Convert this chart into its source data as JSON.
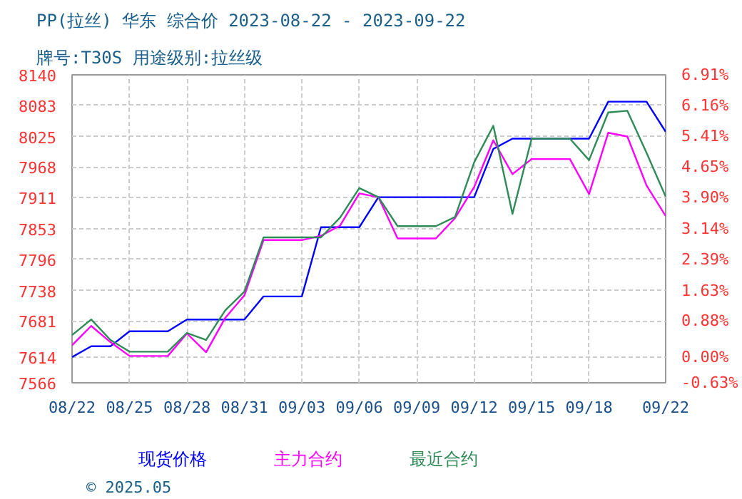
{
  "chart_data": {
    "type": "line",
    "title": "PP(拉丝) 华东 综合价 2023-08-22 - 2023-09-22",
    "subtitle": "牌号:T30S 用途级别:拉丝级",
    "annotations": [
      "© 2025.05"
    ],
    "xlim": [
      "2023-08-22",
      "2023-09-22"
    ],
    "xticks": [
      {
        "value": "2023-08-22",
        "label": "08/22"
      },
      {
        "value": "2023-08-25",
        "label": "08/25"
      },
      {
        "value": "2023-08-28",
        "label": "08/28"
      },
      {
        "value": "2023-08-31",
        "label": "08/31"
      },
      {
        "value": "2023-09-03",
        "label": "09/03"
      },
      {
        "value": "2023-09-06",
        "label": "09/06"
      },
      {
        "value": "2023-09-09",
        "label": "09/09"
      },
      {
        "value": "2023-09-12",
        "label": "09/12"
      },
      {
        "value": "2023-09-15",
        "label": "09/15"
      },
      {
        "value": "2023-09-18",
        "label": "09/18"
      },
      {
        "value": "2023-09-22",
        "label": "09/22"
      }
    ],
    "ylim": [
      7566,
      8140
    ],
    "yticks": [
      7566,
      7614,
      7681,
      7738,
      7796,
      7853,
      7911,
      7968,
      8025,
      8083,
      8140
    ],
    "y2lim": [
      -0.63,
      6.91
    ],
    "y2ticks": [
      {
        "value": -0.63,
        "label": "-0.63%"
      },
      {
        "value": 0,
        "label": "0.00%"
      },
      {
        "value": 0.88,
        "label": "0.88%"
      },
      {
        "value": 1.63,
        "label": "1.63%"
      },
      {
        "value": 2.39,
        "label": "2.39%"
      },
      {
        "value": 3.14,
        "label": "3.14%"
      },
      {
        "value": 3.9,
        "label": "3.90%"
      },
      {
        "value": 4.65,
        "label": "4.65%"
      },
      {
        "value": 5.41,
        "label": "5.41%"
      },
      {
        "value": 6.16,
        "label": "6.16%"
      },
      {
        "value": 6.91,
        "label": "6.91%"
      }
    ],
    "grid": true,
    "legend": "bottom",
    "series": [
      {
        "name": "现货价格",
        "color": "#0000ff",
        "x": [
          "2023-08-22",
          "2023-08-23",
          "2023-08-24",
          "2023-08-25",
          "2023-08-27",
          "2023-08-28",
          "2023-08-31",
          "2023-09-01",
          "2023-09-03",
          "2023-09-04",
          "2023-09-06",
          "2023-09-07",
          "2023-09-12",
          "2023-09-13",
          "2023-09-14",
          "2023-09-18",
          "2023-09-19",
          "2023-09-21",
          "2023-09-22"
        ],
        "values": [
          7614,
          7634,
          7634,
          7662,
          7662,
          7684,
          7684,
          7727,
          7727,
          7856,
          7856,
          7912,
          7912,
          8002,
          8021,
          8021,
          8090,
          8090,
          8034
        ]
      },
      {
        "name": "主力合约",
        "color": "#ff00ff",
        "x": [
          "2023-08-22",
          "2023-08-23",
          "2023-08-24",
          "2023-08-25",
          "2023-08-27",
          "2023-08-28",
          "2023-08-29",
          "2023-08-30",
          "2023-08-31",
          "2023-09-01",
          "2023-09-03",
          "2023-09-04",
          "2023-09-05",
          "2023-09-06",
          "2023-09-07",
          "2023-09-08",
          "2023-09-10",
          "2023-09-11",
          "2023-09-12",
          "2023-09-13",
          "2023-09-14",
          "2023-09-15",
          "2023-09-17",
          "2023-09-18",
          "2023-09-19",
          "2023-09-20",
          "2023-09-21",
          "2023-09-22"
        ],
        "values": [
          7636,
          7672,
          7642,
          7616,
          7616,
          7658,
          7623,
          7687,
          7729,
          7832,
          7832,
          7840,
          7859,
          7919,
          7912,
          7835,
          7835,
          7873,
          7931,
          8018,
          7955,
          7983,
          7983,
          7918,
          8032,
          8025,
          7934,
          7877
        ]
      },
      {
        "name": "最近合约",
        "color": "#2e8b57",
        "x": [
          "2023-08-22",
          "2023-08-23",
          "2023-08-24",
          "2023-08-25",
          "2023-08-27",
          "2023-08-28",
          "2023-08-29",
          "2023-08-30",
          "2023-08-31",
          "2023-09-01",
          "2023-09-04",
          "2023-09-05",
          "2023-09-06",
          "2023-09-07",
          "2023-09-08",
          "2023-09-10",
          "2023-09-11",
          "2023-09-12",
          "2023-09-13",
          "2023-09-14",
          "2023-09-15",
          "2023-09-17",
          "2023-09-18",
          "2023-09-19",
          "2023-09-20",
          "2023-09-21",
          "2023-09-22"
        ],
        "values": [
          7655,
          7684,
          7646,
          7624,
          7624,
          7659,
          7646,
          7701,
          7736,
          7837,
          7837,
          7874,
          7929,
          7912,
          7858,
          7858,
          7875,
          7977,
          8045,
          7881,
          8021,
          8021,
          7981,
          8070,
          8073,
          7995,
          7913
        ]
      }
    ]
  }
}
